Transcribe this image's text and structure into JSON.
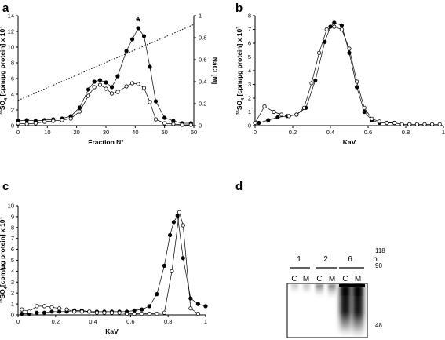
{
  "panel_labels": [
    "a",
    "b",
    "c",
    "d"
  ],
  "chart_data": [
    {
      "panel": "a",
      "type": "line",
      "xlabel": "Fraction N°",
      "ylabel": "35SO4 [cpm/µg protein] x 10³",
      "ylabel_parts": {
        "sup": "35",
        "main": "SO",
        "sub": "4",
        "rest": " [cpm/µg protein] x 10",
        "exp": "3"
      },
      "y2label": "NaCl [M]",
      "xlim": [
        0,
        60
      ],
      "ylim": [
        0,
        14
      ],
      "y2lim": [
        0,
        1
      ],
      "xticks": [
        0,
        10,
        20,
        30,
        40,
        50,
        60
      ],
      "yticks": [
        0,
        2,
        4,
        6,
        8,
        10,
        12,
        14
      ],
      "y2ticks": [
        "0",
        "0.2",
        "0.4",
        "0.6",
        "0.8",
        "1"
      ],
      "annotation": "*",
      "annotation_x": 41,
      "series": [
        {
          "marker": "filled",
          "x": [
            0,
            3,
            6,
            9,
            12,
            15,
            18,
            21,
            24,
            26,
            28,
            30,
            32,
            34,
            37,
            39,
            41,
            43,
            45,
            47,
            50,
            53,
            56,
            59
          ],
          "values": [
            0.6,
            0.7,
            0.6,
            0.7,
            0.8,
            0.9,
            1.2,
            2.3,
            4.6,
            5.6,
            5.8,
            5.5,
            4.9,
            6.3,
            9.5,
            11.0,
            12.4,
            11.4,
            7.5,
            3.1,
            1.0,
            0.6,
            0.3,
            0.3
          ]
        },
        {
          "marker": "open",
          "x": [
            0,
            3,
            6,
            9,
            12,
            15,
            18,
            21,
            24,
            26,
            28,
            30,
            32,
            34,
            37,
            39,
            41,
            43,
            45,
            47,
            50,
            53,
            56,
            59
          ],
          "values": [
            0.3,
            0.2,
            0.3,
            0.5,
            0.6,
            0.7,
            0.9,
            1.8,
            3.8,
            4.9,
            5.2,
            4.7,
            4.1,
            4.3,
            5.0,
            5.4,
            5.3,
            4.8,
            3.0,
            0.8,
            0.3,
            0.2,
            0.1,
            0.1
          ]
        },
        {
          "marker": "none",
          "style": "dotted",
          "axis": "right",
          "x": [
            0,
            60
          ],
          "values": [
            0.23,
            0.92
          ]
        }
      ]
    },
    {
      "panel": "b",
      "type": "line",
      "xlabel": "KaV",
      "ylabel": "35SO4 [cpm/µg protein] x 10³",
      "ylabel_parts": {
        "sup": "35",
        "main": "SO",
        "sub": "4",
        "rest": " [cpm/µg protein] x 10",
        "exp": "3"
      },
      "xlim": [
        0,
        1
      ],
      "ylim": [
        0,
        8
      ],
      "xticks": [
        "0",
        "0.2",
        "0.4",
        "0.6",
        "0.8",
        "1"
      ],
      "yticks": [
        0,
        1,
        2,
        3,
        4,
        5,
        6,
        7,
        8
      ],
      "series": [
        {
          "marker": "filled",
          "x": [
            0.02,
            0.07,
            0.12,
            0.17,
            0.22,
            0.27,
            0.32,
            0.37,
            0.4,
            0.42,
            0.46,
            0.5,
            0.54,
            0.58,
            0.62,
            0.66,
            0.7,
            0.74,
            0.78,
            0.82,
            0.86,
            0.9,
            0.94
          ],
          "values": [
            0.2,
            0.4,
            0.6,
            0.7,
            0.8,
            1.3,
            3.3,
            6.1,
            7.2,
            7.5,
            7.3,
            5.3,
            2.8,
            1.0,
            0.4,
            0.2,
            0.2,
            0.2,
            0.1,
            0.1,
            0.1,
            0.1,
            0.1
          ]
        },
        {
          "marker": "open",
          "x": [
            0.0,
            0.05,
            0.1,
            0.14,
            0.18,
            0.22,
            0.26,
            0.3,
            0.34,
            0.38,
            0.42,
            0.46,
            0.5,
            0.54,
            0.58,
            0.62,
            0.66,
            0.7,
            0.74,
            0.78,
            0.82,
            0.86,
            0.9,
            0.94,
            0.98
          ],
          "values": [
            0.2,
            1.4,
            1.0,
            0.8,
            0.7,
            0.8,
            1.3,
            3.1,
            5.3,
            7.0,
            7.2,
            7.0,
            5.6,
            3.2,
            1.3,
            0.5,
            0.3,
            0.2,
            0.2,
            0.1,
            0.1,
            0.1,
            0.1,
            0.1,
            0.1
          ]
        }
      ]
    },
    {
      "panel": "c",
      "type": "line",
      "xlabel": "KaV",
      "ylabel": "35SO4[cpm/µg protein] x 10³",
      "ylabel_parts": {
        "sup": "35",
        "main": "SO",
        "sub": "4",
        "rest": "[cpm/µg protein] x 10",
        "exp": "3"
      },
      "xlim": [
        0,
        1
      ],
      "ylim": [
        0,
        10
      ],
      "xticks": [
        "0",
        "0.2",
        "0.4",
        "0.6",
        "0.8",
        "1"
      ],
      "yticks": [
        0,
        1,
        2,
        3,
        4,
        5,
        6,
        7,
        8,
        9,
        10
      ],
      "series": [
        {
          "marker": "filled",
          "x": [
            0.02,
            0.06,
            0.1,
            0.14,
            0.18,
            0.22,
            0.26,
            0.3,
            0.34,
            0.38,
            0.42,
            0.46,
            0.5,
            0.54,
            0.58,
            0.62,
            0.66,
            0.7,
            0.74,
            0.78,
            0.81,
            0.83,
            0.85,
            0.88,
            0.92,
            0.96,
            1.0
          ],
          "values": [
            0.1,
            0.1,
            0.2,
            0.2,
            0.3,
            0.3,
            0.3,
            0.4,
            0.4,
            0.3,
            0.3,
            0.3,
            0.3,
            0.3,
            0.3,
            0.4,
            0.5,
            0.8,
            1.9,
            4.5,
            7.3,
            8.5,
            9.1,
            5.2,
            1.5,
            1.0,
            0.8
          ]
        },
        {
          "marker": "open",
          "x": [
            0.02,
            0.06,
            0.1,
            0.14,
            0.18,
            0.22,
            0.26,
            0.3,
            0.34,
            0.38,
            0.42,
            0.46,
            0.5,
            0.54,
            0.58,
            0.62,
            0.66,
            0.7,
            0.74,
            0.78,
            0.82,
            0.86,
            0.88,
            0.92,
            0.96
          ],
          "values": [
            0.5,
            0.3,
            0.8,
            0.8,
            0.7,
            0.6,
            0.5,
            0.3,
            0.3,
            0.3,
            0.2,
            0.2,
            0.2,
            0.2,
            0.1,
            0.1,
            0.1,
            0.1,
            0.1,
            0.2,
            4.0,
            9.4,
            8.2,
            0.6,
            0.1
          ]
        }
      ]
    }
  ],
  "gel": {
    "panel": "d",
    "time_labels": [
      "1",
      "2",
      "6"
    ],
    "time_unit": "h",
    "lane_labels": [
      "C",
      "M",
      "C",
      "M",
      "C",
      "M"
    ],
    "mw_markers": [
      "118",
      "90",
      "48"
    ]
  }
}
